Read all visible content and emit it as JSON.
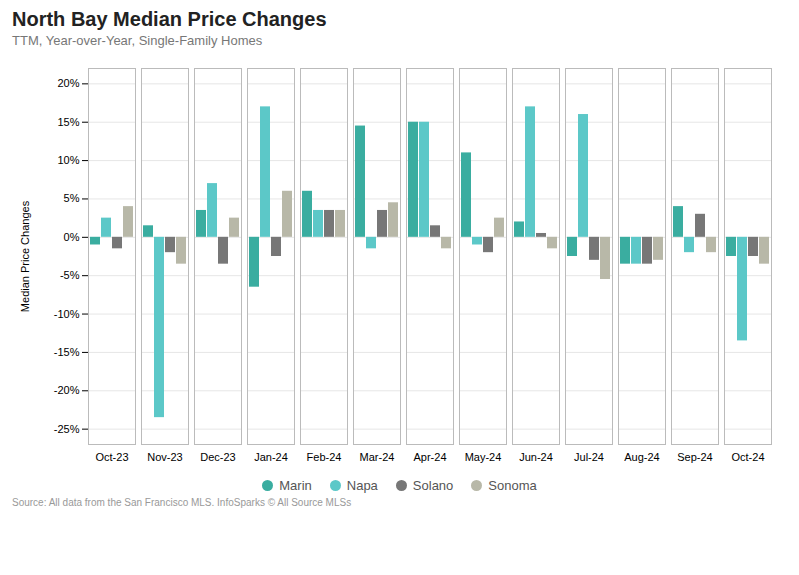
{
  "chart_data": {
    "type": "bar",
    "title": "North Bay Median Price Changes",
    "subtitle": "TTM, Year-over-Year, Single-Family Homes",
    "ylabel": "Median Price Changes",
    "source": "Source:  All data from the San Francisco MLS. InfoSparks © All Source MLSs",
    "categories": [
      "Oct-23",
      "Nov-23",
      "Dec-23",
      "Jan-24",
      "Feb-24",
      "Mar-24",
      "Apr-24",
      "May-24",
      "Jun-24",
      "Jul-24",
      "Aug-24",
      "Sep-24",
      "Oct-24"
    ],
    "series": [
      {
        "name": "Marin",
        "color": "#3aada0",
        "values": [
          -1.0,
          1.5,
          3.5,
          -6.5,
          6.0,
          14.5,
          15.0,
          11.0,
          2.0,
          -2.5,
          -3.5,
          4.0,
          -2.5
        ]
      },
      {
        "name": "Napa",
        "color": "#5cc8c8",
        "values": [
          2.5,
          -23.5,
          7.0,
          17.0,
          3.5,
          -1.5,
          15.0,
          -1.0,
          17.0,
          16.0,
          -3.5,
          -2.0,
          -13.5
        ]
      },
      {
        "name": "Solano",
        "color": "#777777",
        "values": [
          -1.5,
          -2.0,
          -3.5,
          -2.5,
          3.5,
          3.5,
          1.5,
          -2.0,
          0.5,
          -3.0,
          -3.5,
          3.0,
          -2.5
        ]
      },
      {
        "name": "Sonoma",
        "color": "#b8b8a8",
        "values": [
          4.0,
          -3.5,
          2.5,
          6.0,
          3.5,
          4.5,
          -1.5,
          2.5,
          -1.5,
          -5.5,
          -3.0,
          -2.0,
          -3.5
        ]
      }
    ],
    "ylim": [
      -27,
      22
    ],
    "yticks": [
      {
        "value": -25,
        "label": "-25%"
      },
      {
        "value": -20,
        "label": "-20%"
      },
      {
        "value": -15,
        "label": "-15%"
      },
      {
        "value": -10,
        "label": "-10%"
      },
      {
        "value": -5,
        "label": "-5%"
      },
      {
        "value": 0,
        "label": "0%"
      },
      {
        "value": 5,
        "label": "5%"
      },
      {
        "value": 10,
        "label": "10%"
      },
      {
        "value": 15,
        "label": "15%"
      },
      {
        "value": 20,
        "label": "20%"
      }
    ],
    "grid": true,
    "legend": "bottom"
  }
}
